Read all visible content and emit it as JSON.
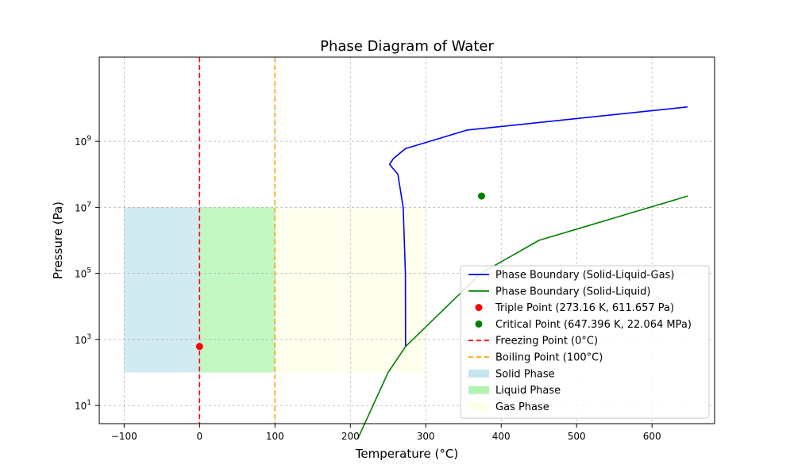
{
  "chart_data": {
    "type": "line",
    "title": "Phase Diagram of Water",
    "xlabel": "Temperature (°C)",
    "ylabel": "Pressure (Pa)",
    "xlim": [
      -133,
      683
    ],
    "ylim_log10": [
      0.45,
      11.55
    ],
    "y_scale": "log",
    "grid": true,
    "legend_position": "lower-right",
    "x_ticks": [
      -100,
      0,
      100,
      200,
      300,
      400,
      500,
      600
    ],
    "x_tick_labels": [
      "−100",
      "0",
      "100",
      "200",
      "300",
      "400",
      "500",
      "600"
    ],
    "y_ticks": [
      1,
      3,
      5,
      7,
      9
    ],
    "y_tick_labels": [
      {
        "base": "10",
        "exp": "1"
      },
      {
        "base": "10",
        "exp": "3"
      },
      {
        "base": "10",
        "exp": "5"
      },
      {
        "base": "10",
        "exp": "7"
      },
      {
        "base": "10",
        "exp": "9"
      }
    ],
    "regions": [
      {
        "name": "Solid Phase",
        "x": [
          -100,
          0
        ],
        "y": [
          100,
          10000000
        ],
        "color": "#add8e6"
      },
      {
        "name": "Liquid Phase",
        "x": [
          0,
          100
        ],
        "y": [
          100,
          10000000
        ],
        "color": "#90ee90"
      },
      {
        "name": "Gas Phase",
        "x": [
          100,
          300
        ],
        "y": [
          100,
          10000000
        ],
        "color": "#ffffe0"
      }
    ],
    "series": [
      {
        "name": "Phase Boundary (Solid-Liquid-Gas)",
        "color": "#0000ff",
        "style": "solid",
        "points": [
          [
            273.16,
            611.657
          ],
          [
            273,
            100000
          ],
          [
            270,
            10000000
          ],
          [
            263,
            100000000
          ],
          [
            252,
            200000000
          ],
          [
            257,
            300000000
          ],
          [
            273,
            600000000
          ],
          [
            355,
            2200000000
          ],
          [
            647,
            11000000000
          ]
        ]
      },
      {
        "name": "Phase Boundary (Solid-Liquid)",
        "color": "#008000",
        "style": "solid",
        "points": [
          [
            210,
            1
          ],
          [
            250,
            100
          ],
          [
            273.16,
            611.657
          ],
          [
            373,
            100000
          ],
          [
            450,
            1000000
          ],
          [
            647.396,
            22064000
          ]
        ]
      }
    ],
    "points": [
      {
        "name": "Triple Point (273.16 K, 611.657 Pa)",
        "x": 0.01,
        "y": 611.657,
        "color": "#ff0000"
      },
      {
        "name": "Critical Point (647.396 K, 22.064 MPa)",
        "x": 374,
        "y": 22064000,
        "color": "#008000"
      }
    ],
    "vlines": [
      {
        "name": "Freezing Point (0°C)",
        "x": 0,
        "color": "#ff0000"
      },
      {
        "name": "Boiling Point (100°C)",
        "x": 100,
        "color": "#ffa500"
      }
    ],
    "legend": [
      {
        "label": "Phase Boundary (Solid-Liquid-Gas)",
        "kind": "line",
        "color": "#0000ff"
      },
      {
        "label": "Phase Boundary (Solid-Liquid)",
        "kind": "line",
        "color": "#008000"
      },
      {
        "label": "Triple Point (273.16 K, 611.657 Pa)",
        "kind": "marker",
        "color": "#ff0000"
      },
      {
        "label": "Critical Point (647.396 K, 22.064 MPa)",
        "kind": "marker",
        "color": "#008000"
      },
      {
        "label": "Freezing Point (0°C)",
        "kind": "dash",
        "color": "#ff0000"
      },
      {
        "label": "Boiling Point (100°C)",
        "kind": "dash",
        "color": "#ffa500"
      },
      {
        "label": "Solid Phase",
        "kind": "patch",
        "color": "#add8e6"
      },
      {
        "label": "Liquid Phase",
        "kind": "patch",
        "color": "#90ee90"
      },
      {
        "label": "Gas Phase",
        "kind": "patch",
        "color": "#ffffe0"
      }
    ]
  }
}
